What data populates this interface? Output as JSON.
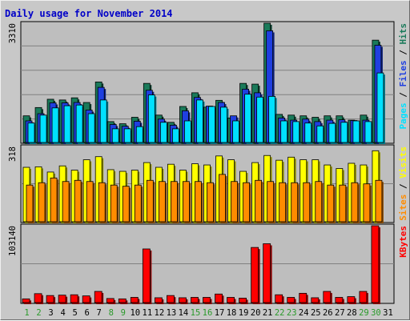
{
  "chart_data": {
    "type": "bar",
    "title": "Daily usage for November 2014",
    "categories": [
      "1",
      "2",
      "3",
      "4",
      "5",
      "6",
      "7",
      "8",
      "9",
      "10",
      "11",
      "12",
      "13",
      "14",
      "15",
      "16",
      "17",
      "18",
      "19",
      "20",
      "21",
      "22",
      "23",
      "24",
      "25",
      "26",
      "27",
      "28",
      "29",
      "30",
      "31"
    ],
    "weekend_days": [
      "1",
      "2",
      "8",
      "9",
      "15",
      "16",
      "22",
      "23",
      "29",
      "30"
    ],
    "grid": true,
    "panels": [
      {
        "name": "pages-files-hits",
        "ymax_label": "3310",
        "ylim": [
          0,
          3310
        ],
        "right_labels": [
          {
            "text": "Pages",
            "color": "#00e0ff"
          },
          {
            "text": "Files",
            "color": "#1f3fe0"
          },
          {
            "text": "Hits",
            "color": "#1a7a5a"
          }
        ],
        "series": [
          {
            "name": "Hits",
            "color": "#1a7a5a",
            "values": [
              740,
              970,
              1200,
              1180,
              1240,
              1110,
              1680,
              580,
              520,
              700,
              1640,
              760,
              560,
              1000,
              1380,
              980,
              1170,
              680,
              1640,
              1620,
              3310,
              780,
              760,
              740,
              700,
              740,
              740,
              620,
              760,
              2840,
              0
            ]
          },
          {
            "name": "Files",
            "color": "#1f3fe0",
            "values": [
              600,
              800,
              1100,
              1100,
              1110,
              900,
              1530,
              500,
              450,
              590,
              1450,
              650,
              480,
              880,
              1250,
              1010,
              1110,
              740,
              1480,
              1380,
              3100,
              680,
              620,
              650,
              580,
              620,
              630,
              610,
              620,
              2700,
              0
            ]
          },
          {
            "name": "Pages",
            "color": "#00e0ff",
            "values": [
              540,
              760,
              960,
              1020,
              1040,
              800,
              1180,
              380,
              380,
              440,
              1320,
              560,
              380,
              600,
              1180,
              1000,
              980,
              600,
              1340,
              1260,
              1280,
              600,
              580,
              540,
              460,
              530,
              560,
              600,
              580,
              1930,
              0
            ]
          }
        ]
      },
      {
        "name": "sites-visits",
        "ymax_label": "318",
        "ylim": [
          0,
          318
        ],
        "right_labels": [
          {
            "text": "Sites",
            "color": "#ff8c00"
          },
          {
            "text": "Visits",
            "color": "#ffff00"
          }
        ],
        "series": [
          {
            "name": "Visits",
            "color": "#ffff00",
            "values": [
              230,
              232,
              210,
              236,
              218,
              262,
              275,
              220,
              213,
              218,
              250,
              230,
              243,
              218,
              245,
              240,
              278,
              262,
              213,
              250,
              280,
              260,
              273,
              262,
              262,
              240,
              225,
              247,
              240,
              300,
              0
            ]
          },
          {
            "name": "Sites",
            "color": "#ff8c00",
            "values": [
              155,
              165,
              185,
              170,
              175,
              170,
              165,
              155,
              150,
              155,
              175,
              170,
              170,
              170,
              170,
              165,
              200,
              170,
              165,
              175,
              170,
              165,
              165,
              165,
              170,
              155,
              155,
              165,
              160,
              175,
              0
            ]
          }
        ]
      },
      {
        "name": "kbytes",
        "ymax_label": "103140",
        "ylim": [
          0,
          103140
        ],
        "right_labels": [
          {
            "text": "KBytes",
            "color": "#ff0000"
          }
        ],
        "series": [
          {
            "name": "KBytes",
            "color": "#ff0000",
            "values": [
              5000,
              12000,
              9500,
              10000,
              10500,
              9000,
              15000,
              5500,
              5000,
              7000,
              72000,
              6500,
              9500,
              6500,
              7000,
              7000,
              11500,
              7000,
              6000,
              74000,
              79000,
              10500,
              7000,
              12500,
              6500,
              15000,
              7000,
              8000,
              15000,
              103140,
              0
            ]
          }
        ]
      }
    ]
  }
}
